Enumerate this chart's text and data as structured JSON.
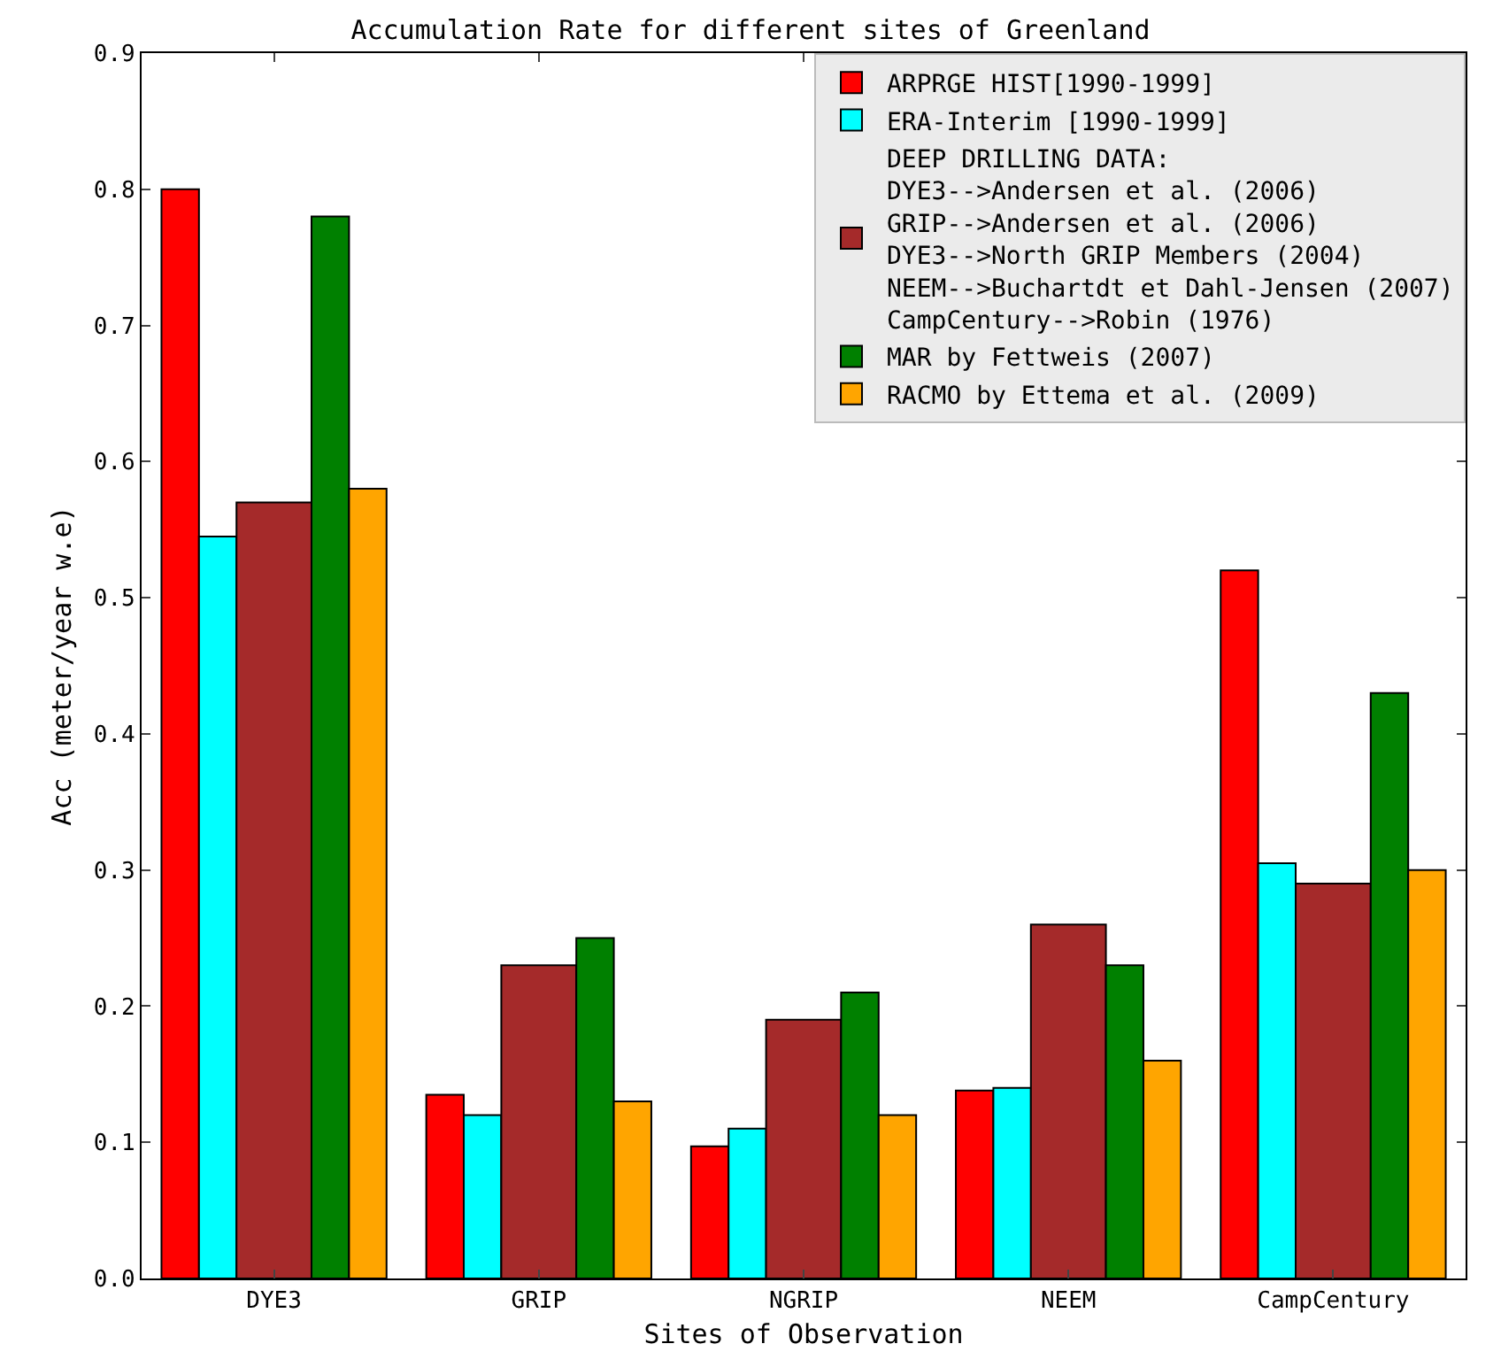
{
  "chart_data": {
    "type": "bar",
    "title": "Accumulation Rate for different sites of Greenland",
    "xlabel": "Sites of Observation",
    "ylabel": "Acc (meter/year w.e)",
    "categories": [
      "DYE3",
      "GRIP",
      "NGRIP",
      "NEEM",
      "CampCentury"
    ],
    "series": [
      {
        "name": "ARPRGE HIST[1990-1999]",
        "color": "#ff0000",
        "values": [
          0.8,
          0.135,
          0.097,
          0.138,
          0.52
        ]
      },
      {
        "name": "ERA-Interim [1990-1999]",
        "color": "#00ffff",
        "values": [
          0.545,
          0.12,
          0.11,
          0.14,
          0.305
        ]
      },
      {
        "name": "DEEP DRILLING DATA:\nDYE3-->Andersen et al. (2006)\nGRIP-->Andersen et al. (2006)\nDYE3-->North GRIP Members (2004)\nNEEM-->Buchartdt et Dahl-Jensen (2007)\nCampCentury-->Robin (1976)",
        "color": "#a52a2a",
        "values": [
          0.57,
          0.23,
          0.19,
          0.26,
          0.29
        ]
      },
      {
        "name": "MAR by Fettweis (2007)",
        "color": "#008000",
        "values": [
          0.78,
          0.25,
          0.21,
          0.23,
          0.43
        ]
      },
      {
        "name": "RACMO by Ettema et al. (2009)",
        "color": "#ffa500",
        "values": [
          0.58,
          0.13,
          0.12,
          0.16,
          0.3
        ]
      }
    ],
    "ylim": [
      0,
      0.9
    ],
    "yticks": [
      {
        "value": 0,
        "label": "0.0"
      },
      0.1,
      0.2,
      0.3,
      0.4,
      0.5,
      0.6,
      0.7,
      0.8,
      0.9
    ],
    "grid": false,
    "legend": "top right"
  }
}
